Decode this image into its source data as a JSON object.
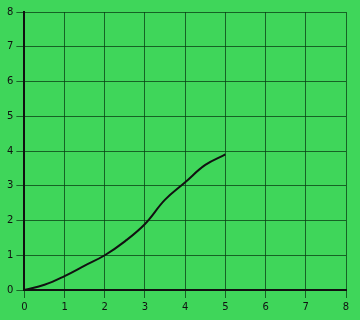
{
  "chart_data": {
    "type": "line",
    "x": [
      0,
      0.5,
      1,
      1.5,
      2,
      2.5,
      3,
      3.5,
      4,
      4.5,
      5
    ],
    "values": [
      0,
      0.15,
      0.4,
      0.7,
      1.0,
      1.4,
      1.9,
      2.6,
      3.1,
      3.6,
      3.9
    ],
    "color": "#111111",
    "xlim": [
      0,
      8
    ],
    "xticks": [
      0,
      1,
      2,
      3,
      4,
      5,
      6,
      7,
      8
    ],
    "ylim": [
      0,
      8
    ],
    "yticks": [
      0,
      1,
      2,
      3,
      4,
      5,
      6,
      7,
      8
    ],
    "grid": true
  }
}
